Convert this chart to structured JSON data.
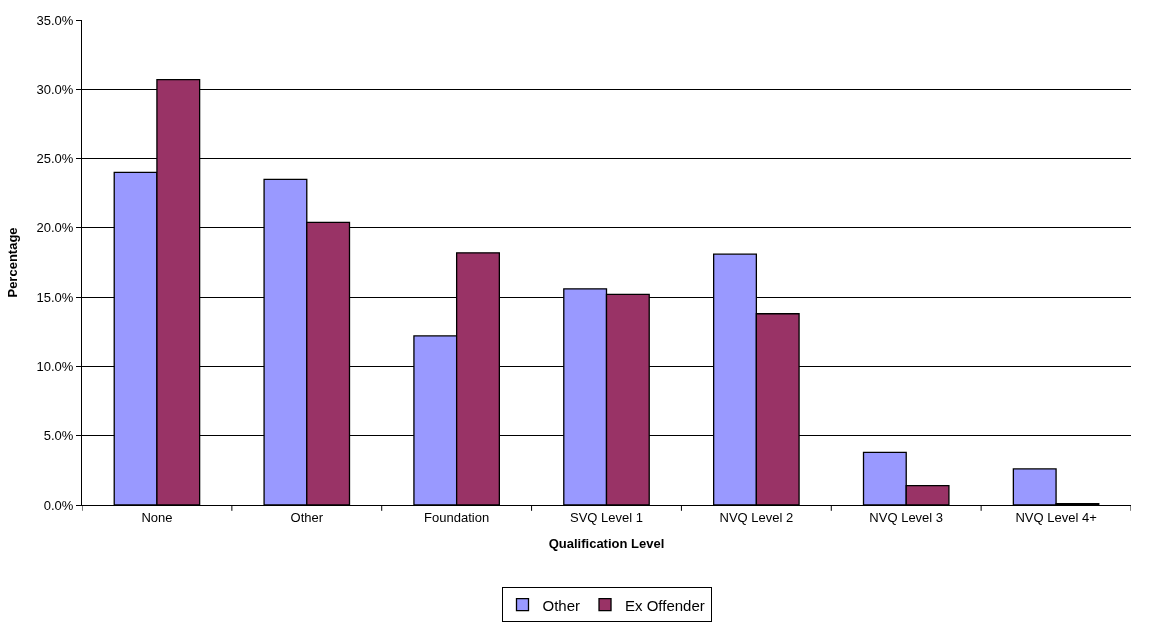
{
  "chart_data": {
    "type": "bar",
    "xlabel": "Qualification Level",
    "ylabel": "Percentage",
    "categories": [
      "None",
      "Other",
      "Foundation",
      "SVQ Level 1",
      "NVQ Level 2",
      "NVQ Level 3",
      "NVQ Level 4+"
    ],
    "series": [
      {
        "name": "Other",
        "color": "#9999ff",
        "values": [
          24.0,
          23.5,
          12.2,
          15.6,
          18.1,
          3.8,
          2.6
        ]
      },
      {
        "name": "Ex Offender",
        "color": "#993366",
        "values": [
          30.7,
          20.4,
          18.2,
          15.2,
          13.8,
          1.4,
          0.1
        ]
      }
    ],
    "ylim": [
      0,
      35
    ],
    "yticks": [
      {
        "value": 0,
        "label": "0.0%"
      },
      {
        "value": 5,
        "label": "5.0%"
      },
      {
        "value": 10,
        "label": "10.0%"
      },
      {
        "value": 15,
        "label": "15.0%"
      },
      {
        "value": 20,
        "label": "20.0%"
      },
      {
        "value": 25,
        "label": "25.0%"
      },
      {
        "value": 30,
        "label": "30.0%"
      },
      {
        "value": 35,
        "label": "35.0%"
      }
    ],
    "grid": "y",
    "legend": "bottom"
  }
}
